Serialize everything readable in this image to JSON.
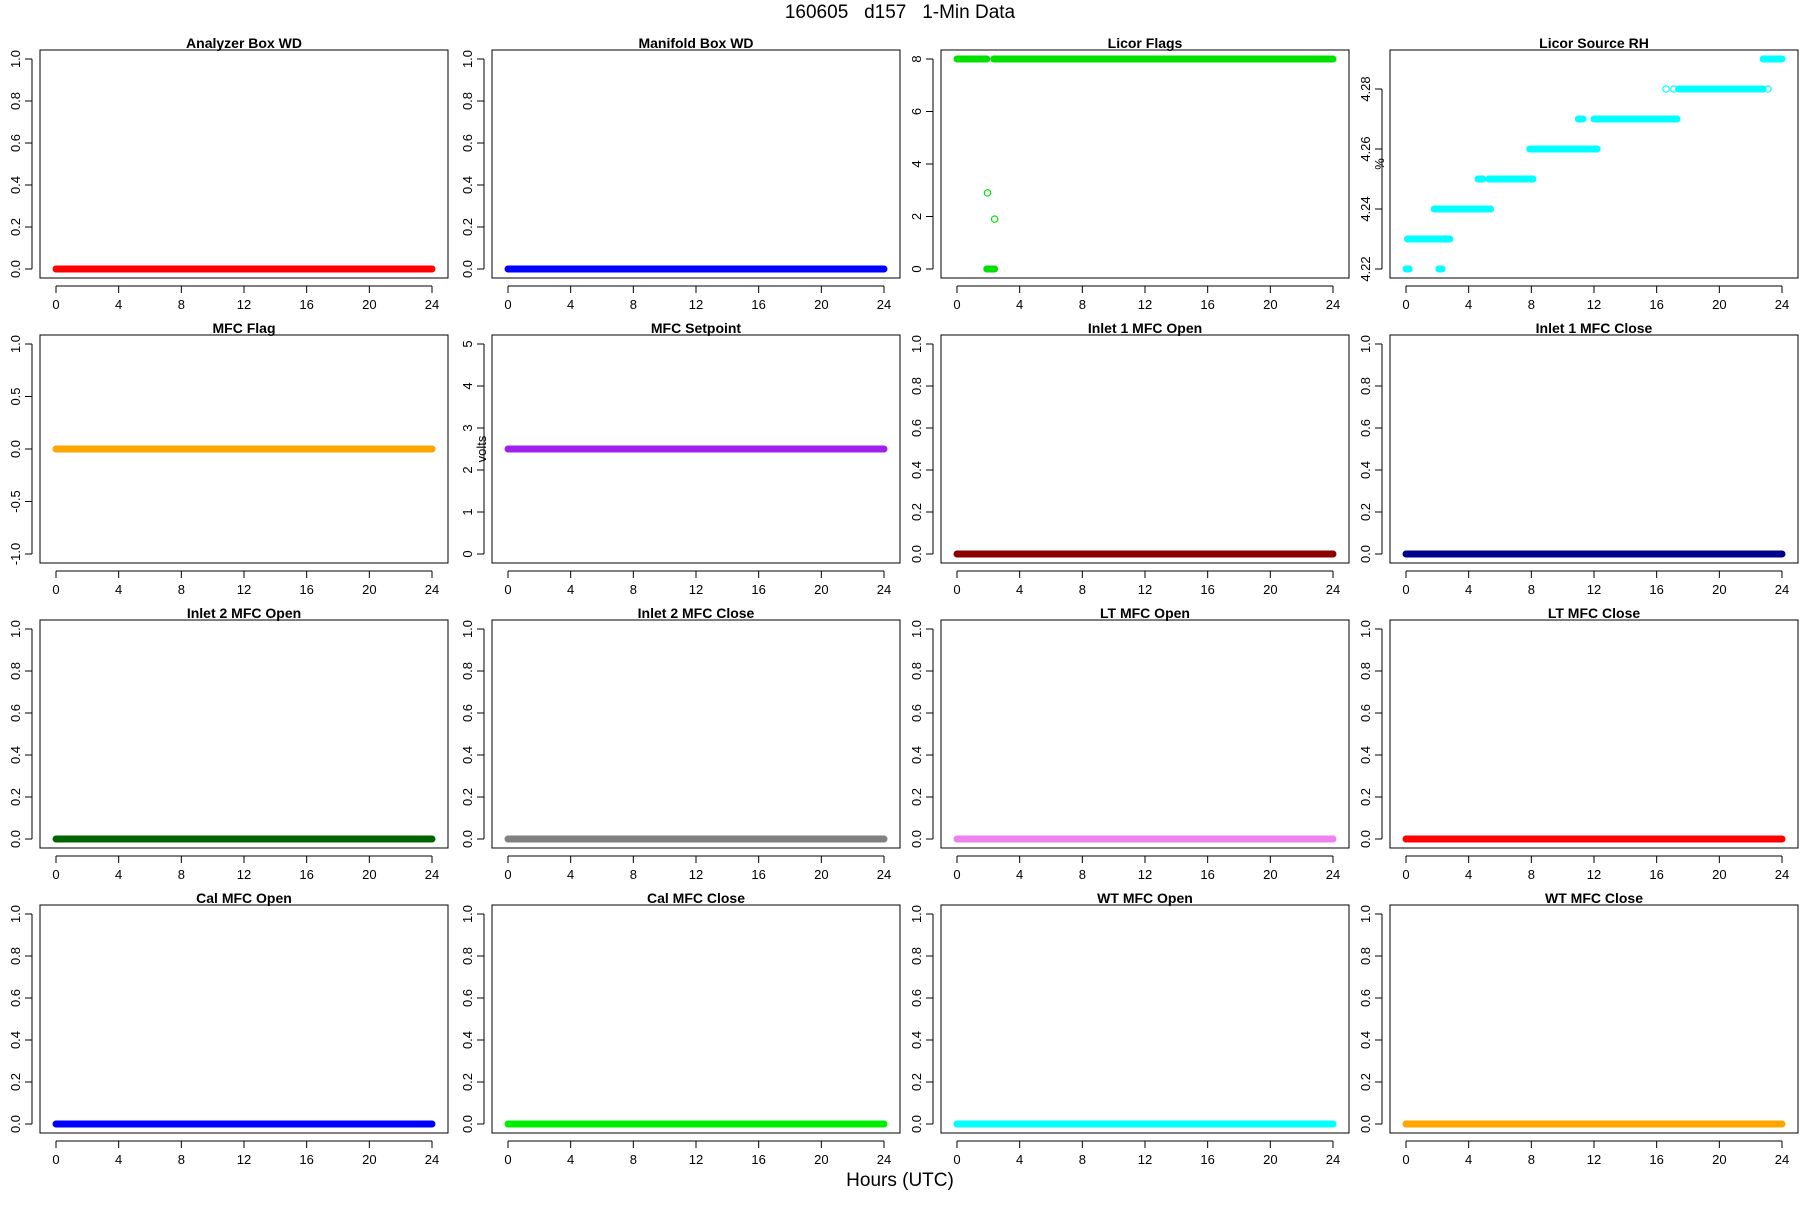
{
  "page": {
    "title": "160605   d157   1-Min Data",
    "xlabel": "Hours (UTC)"
  },
  "chart_data": [
    {
      "type": "scatter",
      "title": "Analyzer Box WD",
      "ylabel": "",
      "color": "#ff0000",
      "xlim": [
        0,
        24
      ],
      "ylim": [
        0,
        1
      ],
      "xticks": [
        "0",
        "4",
        "8",
        "12",
        "16",
        "20",
        "24"
      ],
      "yticks": [
        "0.0",
        "0.2",
        "0.4",
        "0.6",
        "0.8",
        "1.0"
      ],
      "segments": [
        {
          "x0": 0,
          "x1": 24,
          "y": 0
        }
      ],
      "points": []
    },
    {
      "type": "scatter",
      "title": "Manifold Box WD",
      "ylabel": "",
      "color": "#0000ff",
      "xlim": [
        0,
        24
      ],
      "ylim": [
        0,
        1
      ],
      "xticks": [
        "0",
        "4",
        "8",
        "12",
        "16",
        "20",
        "24"
      ],
      "yticks": [
        "0.0",
        "0.2",
        "0.4",
        "0.6",
        "0.8",
        "1.0"
      ],
      "segments": [
        {
          "x0": 0,
          "x1": 24,
          "y": 0
        }
      ],
      "points": []
    },
    {
      "type": "scatter",
      "title": "Licor Flags",
      "ylabel": "",
      "color": "#00e000",
      "xlim": [
        0,
        24
      ],
      "ylim": [
        0,
        8
      ],
      "xticks": [
        "0",
        "4",
        "8",
        "12",
        "16",
        "20",
        "24"
      ],
      "yticks": [
        "0",
        "2",
        "4",
        "6",
        "8"
      ],
      "segments": [
        {
          "x0": 0,
          "x1": 1.9,
          "y": 8
        },
        {
          "x0": 2.35,
          "x1": 24,
          "y": 8
        },
        {
          "x0": 1.9,
          "x1": 2.4,
          "y": 0
        }
      ],
      "points": [
        {
          "x": 1.95,
          "y": 2.9
        },
        {
          "x": 2.4,
          "y": 1.9
        }
      ]
    },
    {
      "type": "scatter",
      "title": "Licor Source RH",
      "ylabel": "%",
      "color": "#00ffff",
      "xlim": [
        0,
        24
      ],
      "ylim": [
        4.22,
        4.29
      ],
      "xticks": [
        "0",
        "4",
        "8",
        "12",
        "16",
        "20",
        "24"
      ],
      "yticks": [
        "4.22",
        "4.24",
        "4.26",
        "4.28"
      ],
      "segments": [
        {
          "x0": 0,
          "x1": 0.2,
          "y": 4.22
        },
        {
          "x0": 0.1,
          "x1": 2.4,
          "y": 4.23
        },
        {
          "x0": 1.8,
          "x1": 2.2,
          "y": 4.24
        },
        {
          "x0": 2.1,
          "x1": 2.3,
          "y": 4.22
        },
        {
          "x0": 2.5,
          "x1": 2.8,
          "y": 4.23
        },
        {
          "x0": 2.2,
          "x1": 5.4,
          "y": 4.24
        },
        {
          "x0": 4.6,
          "x1": 4.9,
          "y": 4.25
        },
        {
          "x0": 5.3,
          "x1": 8.1,
          "y": 4.25
        },
        {
          "x0": 7.9,
          "x1": 12.2,
          "y": 4.26
        },
        {
          "x0": 11,
          "x1": 11.3,
          "y": 4.27
        },
        {
          "x0": 12,
          "x1": 17.3,
          "y": 4.27
        },
        {
          "x0": 17.4,
          "x1": 22.8,
          "y": 4.28
        },
        {
          "x0": 22.8,
          "x1": 24,
          "y": 4.29
        }
      ],
      "points": [
        {
          "x": 16.6,
          "y": 4.28
        },
        {
          "x": 17.1,
          "y": 4.28
        },
        {
          "x": 23.1,
          "y": 4.28
        },
        {
          "x": 2.5,
          "y": 4.23
        }
      ]
    },
    {
      "type": "scatter",
      "title": "MFC Flag",
      "ylabel": "",
      "color": "#ffa500",
      "xlim": [
        0,
        24
      ],
      "ylim": [
        -1,
        1
      ],
      "xticks": [
        "0",
        "4",
        "8",
        "12",
        "16",
        "20",
        "24"
      ],
      "yticks": [
        "-1.0",
        "-0.5",
        "0.0",
        "0.5",
        "1.0"
      ],
      "segments": [
        {
          "x0": 0,
          "x1": 24,
          "y": 0
        }
      ],
      "points": []
    },
    {
      "type": "scatter",
      "title": "MFC Setpoint",
      "ylabel": "volts",
      "color": "#a020f0",
      "xlim": [
        0,
        24
      ],
      "ylim": [
        0,
        5
      ],
      "xticks": [
        "0",
        "4",
        "8",
        "12",
        "16",
        "20",
        "24"
      ],
      "yticks": [
        "0",
        "1",
        "2",
        "3",
        "4",
        "5"
      ],
      "segments": [
        {
          "x0": 0,
          "x1": 24,
          "y": 2.5
        }
      ],
      "points": []
    },
    {
      "type": "scatter",
      "title": "Inlet 1 MFC Open",
      "ylabel": "",
      "color": "#8b0000",
      "xlim": [
        0,
        24
      ],
      "ylim": [
        0,
        1
      ],
      "xticks": [
        "0",
        "4",
        "8",
        "12",
        "16",
        "20",
        "24"
      ],
      "yticks": [
        "0.0",
        "0.2",
        "0.4",
        "0.6",
        "0.8",
        "1.0"
      ],
      "segments": [
        {
          "x0": 0,
          "x1": 24,
          "y": 0
        }
      ],
      "points": []
    },
    {
      "type": "scatter",
      "title": "Inlet 1 MFC Close",
      "ylabel": "",
      "color": "#00008b",
      "xlim": [
        0,
        24
      ],
      "ylim": [
        0,
        1
      ],
      "xticks": [
        "0",
        "4",
        "8",
        "12",
        "16",
        "20",
        "24"
      ],
      "yticks": [
        "0.0",
        "0.2",
        "0.4",
        "0.6",
        "0.8",
        "1.0"
      ],
      "segments": [
        {
          "x0": 0,
          "x1": 24,
          "y": 0
        }
      ],
      "points": []
    },
    {
      "type": "scatter",
      "title": "Inlet 2 MFC Open",
      "ylabel": "",
      "color": "#006400",
      "xlim": [
        0,
        24
      ],
      "ylim": [
        0,
        1
      ],
      "xticks": [
        "0",
        "4",
        "8",
        "12",
        "16",
        "20",
        "24"
      ],
      "yticks": [
        "0.0",
        "0.2",
        "0.4",
        "0.6",
        "0.8",
        "1.0"
      ],
      "segments": [
        {
          "x0": 0,
          "x1": 24,
          "y": 0
        }
      ],
      "points": []
    },
    {
      "type": "scatter",
      "title": "Inlet 2 MFC Close",
      "ylabel": "",
      "color": "#808080",
      "xlim": [
        0,
        24
      ],
      "ylim": [
        0,
        1
      ],
      "xticks": [
        "0",
        "4",
        "8",
        "12",
        "16",
        "20",
        "24"
      ],
      "yticks": [
        "0.0",
        "0.2",
        "0.4",
        "0.6",
        "0.8",
        "1.0"
      ],
      "segments": [
        {
          "x0": 0,
          "x1": 24,
          "y": 0
        }
      ],
      "points": []
    },
    {
      "type": "scatter",
      "title": "LT MFC Open",
      "ylabel": "",
      "color": "#ee82ee",
      "xlim": [
        0,
        24
      ],
      "ylim": [
        0,
        1
      ],
      "xticks": [
        "0",
        "4",
        "8",
        "12",
        "16",
        "20",
        "24"
      ],
      "yticks": [
        "0.0",
        "0.2",
        "0.4",
        "0.6",
        "0.8",
        "1.0"
      ],
      "segments": [
        {
          "x0": 0,
          "x1": 24,
          "y": 0
        }
      ],
      "points": []
    },
    {
      "type": "scatter",
      "title": "LT MFC Close",
      "ylabel": "",
      "color": "#ff0000",
      "xlim": [
        0,
        24
      ],
      "ylim": [
        0,
        1
      ],
      "xticks": [
        "0",
        "4",
        "8",
        "12",
        "16",
        "20",
        "24"
      ],
      "yticks": [
        "0.0",
        "0.2",
        "0.4",
        "0.6",
        "0.8",
        "1.0"
      ],
      "segments": [
        {
          "x0": 0,
          "x1": 24,
          "y": 0
        }
      ],
      "points": []
    },
    {
      "type": "scatter",
      "title": "Cal MFC Open",
      "ylabel": "",
      "color": "#0000ff",
      "xlim": [
        0,
        24
      ],
      "ylim": [
        0,
        1
      ],
      "xticks": [
        "0",
        "4",
        "8",
        "12",
        "16",
        "20",
        "24"
      ],
      "yticks": [
        "0.0",
        "0.2",
        "0.4",
        "0.6",
        "0.8",
        "1.0"
      ],
      "segments": [
        {
          "x0": 0,
          "x1": 24,
          "y": 0
        }
      ],
      "points": []
    },
    {
      "type": "scatter",
      "title": "Cal MFC Close",
      "ylabel": "",
      "color": "#00ee00",
      "xlim": [
        0,
        24
      ],
      "ylim": [
        0,
        1
      ],
      "xticks": [
        "0",
        "4",
        "8",
        "12",
        "16",
        "20",
        "24"
      ],
      "yticks": [
        "0.0",
        "0.2",
        "0.4",
        "0.6",
        "0.8",
        "1.0"
      ],
      "segments": [
        {
          "x0": 0,
          "x1": 24,
          "y": 0
        }
      ],
      "points": []
    },
    {
      "type": "scatter",
      "title": "WT MFC Open",
      "ylabel": "",
      "color": "#00ffff",
      "xlim": [
        0,
        24
      ],
      "ylim": [
        0,
        1
      ],
      "xticks": [
        "0",
        "4",
        "8",
        "12",
        "16",
        "20",
        "24"
      ],
      "yticks": [
        "0.0",
        "0.2",
        "0.4",
        "0.6",
        "0.8",
        "1.0"
      ],
      "segments": [
        {
          "x0": 0,
          "x1": 24,
          "y": 0
        }
      ],
      "points": []
    },
    {
      "type": "scatter",
      "title": "WT MFC Close",
      "ylabel": "",
      "color": "#ffa500",
      "xlim": [
        0,
        24
      ],
      "ylim": [
        0,
        1
      ],
      "xticks": [
        "0",
        "4",
        "8",
        "12",
        "16",
        "20",
        "24"
      ],
      "yticks": [
        "0.0",
        "0.2",
        "0.4",
        "0.6",
        "0.8",
        "1.0"
      ],
      "segments": [
        {
          "x0": 0,
          "x1": 24,
          "y": 0
        }
      ],
      "points": []
    }
  ]
}
